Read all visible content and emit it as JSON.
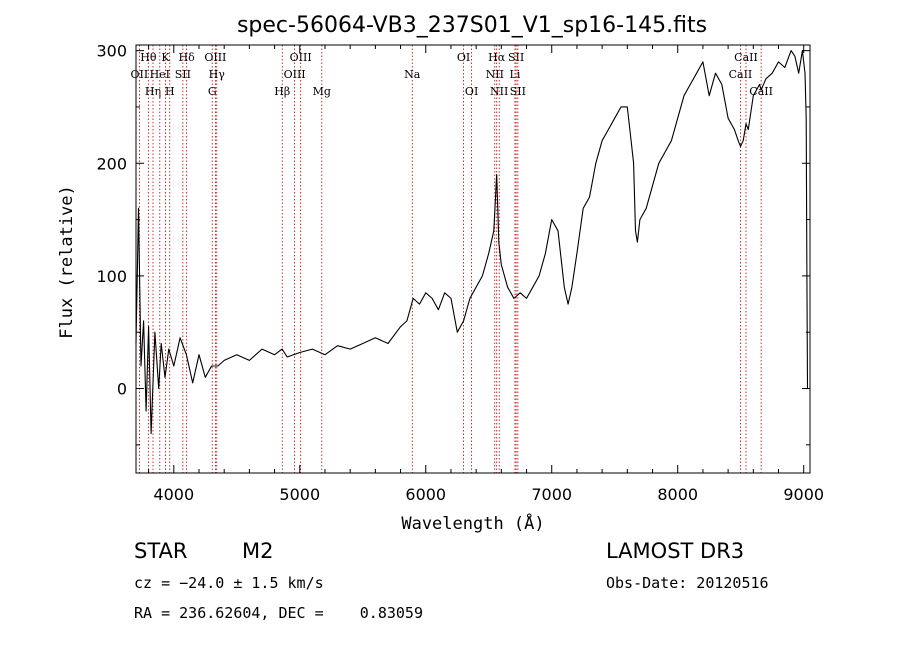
{
  "chart_data": {
    "type": "line",
    "title": "spec-56064-VB3_237S01_V1_sp16-145.fits",
    "xlabel": "Wavelength (Å)",
    "ylabel": "Flux (relative)",
    "xlim": [
      3700,
      9050
    ],
    "ylim": [
      -75,
      305
    ],
    "x_ticks": [
      4000,
      5000,
      6000,
      7000,
      8000,
      9000
    ],
    "x_tick_labels": [
      "4000",
      "5000",
      "6000",
      "7000",
      "8000",
      "9000"
    ],
    "y_ticks": [
      0,
      100,
      200,
      300
    ],
    "y_tick_labels": [
      "0",
      "100",
      "200",
      "300"
    ],
    "series": [
      {
        "name": "spectrum",
        "color": "#000000",
        "x": [
          3700,
          3720,
          3740,
          3760,
          3780,
          3800,
          3820,
          3850,
          3880,
          3900,
          3930,
          3960,
          4000,
          4050,
          4100,
          4150,
          4200,
          4250,
          4300,
          4350,
          4400,
          4500,
          4600,
          4700,
          4800,
          4860,
          4900,
          5000,
          5100,
          5200,
          5300,
          5400,
          5500,
          5600,
          5700,
          5800,
          5850,
          5900,
          5950,
          6000,
          6050,
          6100,
          6150,
          6200,
          6250,
          6300,
          6350,
          6400,
          6450,
          6500,
          6540,
          6563,
          6580,
          6600,
          6650,
          6700,
          6750,
          6800,
          6850,
          6900,
          6950,
          7000,
          7050,
          7100,
          7130,
          7160,
          7200,
          7250,
          7300,
          7350,
          7400,
          7450,
          7500,
          7550,
          7600,
          7630,
          7650,
          7665,
          7680,
          7700,
          7750,
          7800,
          7850,
          7900,
          7950,
          8000,
          8050,
          8100,
          8150,
          8200,
          8250,
          8300,
          8350,
          8400,
          8450,
          8480,
          8498,
          8520,
          8542,
          8560,
          8600,
          8650,
          8662,
          8700,
          8750,
          8800,
          8850,
          8900,
          8930,
          8960,
          8990,
          9010,
          9020,
          9025,
          9030
        ],
        "y": [
          40,
          160,
          20,
          60,
          -20,
          55,
          -40,
          50,
          0,
          40,
          10,
          35,
          20,
          45,
          30,
          5,
          30,
          10,
          20,
          20,
          25,
          30,
          25,
          35,
          30,
          35,
          28,
          32,
          35,
          30,
          38,
          35,
          40,
          45,
          40,
          55,
          60,
          80,
          75,
          85,
          80,
          70,
          85,
          80,
          50,
          60,
          80,
          90,
          100,
          120,
          140,
          190,
          130,
          110,
          90,
          80,
          85,
          80,
          90,
          100,
          120,
          150,
          140,
          90,
          75,
          90,
          120,
          160,
          170,
          200,
          220,
          230,
          240,
          250,
          250,
          220,
          200,
          140,
          130,
          150,
          160,
          180,
          200,
          210,
          220,
          240,
          260,
          270,
          280,
          290,
          260,
          280,
          270,
          240,
          230,
          220,
          215,
          220,
          235,
          230,
          260,
          270,
          265,
          275,
          280,
          290,
          285,
          300,
          295,
          280,
          300,
          280,
          240,
          100,
          0
        ]
      }
    ],
    "lines": [
      {
        "name": "OII",
        "x": 3727,
        "row": 1
      },
      {
        "name": "Hθ",
        "x": 3798,
        "row": 0
      },
      {
        "name": "Hη",
        "x": 3835,
        "row": 2
      },
      {
        "name": "HeI",
        "x": 3889,
        "row": 1
      },
      {
        "name": "K",
        "x": 3934,
        "row": 0
      },
      {
        "name": "H",
        "x": 3968,
        "row": 2
      },
      {
        "name": "SII",
        "x": 4072,
        "row": 1
      },
      {
        "name": "Hδ",
        "x": 4102,
        "row": 0
      },
      {
        "name": "G",
        "x": 4305,
        "row": 2
      },
      {
        "name": "OIII",
        "x": 4330,
        "row": 0
      },
      {
        "name": "Hγ",
        "x": 4341,
        "row": 1
      },
      {
        "name": "Hβ",
        "x": 4861,
        "row": 2
      },
      {
        "name": "OIII",
        "x": 4959,
        "row": 1
      },
      {
        "name": "OIII",
        "x": 5007,
        "row": 0
      },
      {
        "name": "Mg",
        "x": 5175,
        "row": 2
      },
      {
        "name": "Na",
        "x": 5893,
        "row": 1
      },
      {
        "name": "OI",
        "x": 6300,
        "row": 0
      },
      {
        "name": "OI",
        "x": 6364,
        "row": 2
      },
      {
        "name": "NII",
        "x": 6548,
        "row": 1
      },
      {
        "name": "Hα",
        "x": 6563,
        "row": 0
      },
      {
        "name": "NII",
        "x": 6583,
        "row": 2
      },
      {
        "name": "Li",
        "x": 6708,
        "row": 1
      },
      {
        "name": "SII",
        "x": 6717,
        "row": 0
      },
      {
        "name": "SII",
        "x": 6731,
        "row": 2
      },
      {
        "name": "CaII",
        "x": 8498,
        "row": 1
      },
      {
        "name": "CaII",
        "x": 8542,
        "row": 0
      },
      {
        "name": "CaII",
        "x": 8662,
        "row": 2
      }
    ]
  },
  "info": {
    "class": "STAR",
    "subclass": "M2",
    "survey": "LAMOST DR3",
    "cz": "cz = −24.0 ± 1.5 km/s",
    "obs_date": "Obs-Date: 20120516",
    "coords": "RA = 236.62604, DEC =    0.83059"
  }
}
